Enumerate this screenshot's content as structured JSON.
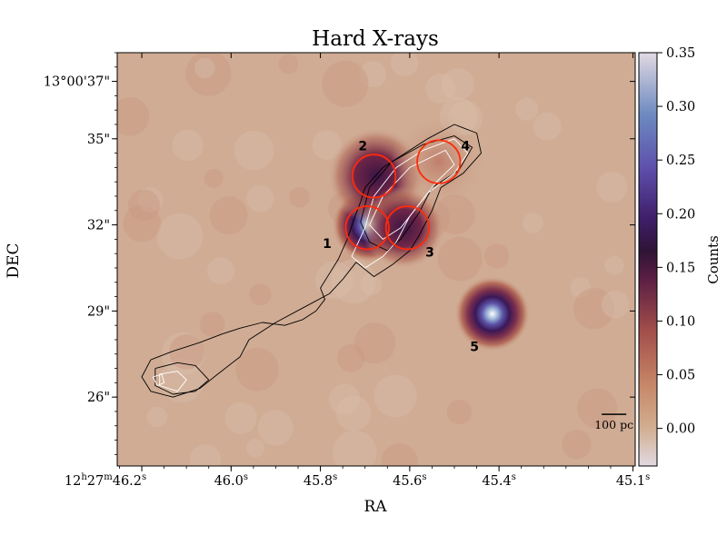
{
  "chart_data": {
    "type": "heatmap",
    "title": "Hard X-rays",
    "xlabel": "RA",
    "ylabel": "DEC",
    "colorbar": {
      "label": "Counts",
      "range": [
        -0.035,
        0.35
      ],
      "ticks": [
        "0.35",
        "0.30",
        "0.25",
        "0.20",
        "0.15",
        "0.10",
        "0.05",
        "0.00"
      ],
      "tick_values": [
        0.35,
        0.3,
        0.25,
        0.2,
        0.15,
        0.1,
        0.05,
        0.0
      ],
      "colormap": "twilight"
    },
    "ra_range_s": [
      46.255,
      45.095
    ],
    "dec_range_arcsec": [
      38.0,
      23.6
    ],
    "x_ticks": [
      {
        "value": 46.2,
        "h": "12",
        "m": "27",
        "main": "46.2",
        "sup_s": "s",
        "full": true
      },
      {
        "value": 46.0,
        "main": "46.0",
        "sup_s": "s"
      },
      {
        "value": 45.8,
        "main": "45.8",
        "sup_s": "s"
      },
      {
        "value": 45.6,
        "main": "45.6",
        "sup_s": "s"
      },
      {
        "value": 45.4,
        "main": "45.4",
        "sup_s": "s"
      },
      {
        "value": 45.1,
        "main": "45.1",
        "sup_s": "s"
      }
    ],
    "y_ticks": [
      {
        "value": 37,
        "label": "13°00'37\""
      },
      {
        "value": 35,
        "label": "35\""
      },
      {
        "value": 32,
        "label": "32\""
      },
      {
        "value": 29,
        "label": "29\""
      },
      {
        "value": 26,
        "label": "26\""
      }
    ],
    "sources": [
      {
        "id": "1",
        "ra": 45.69,
        "dec": 32.0,
        "peak": 0.33,
        "sigma": 0.55
      },
      {
        "id": "2",
        "ra": 45.675,
        "dec": 33.7,
        "peak": 0.12,
        "sigma": 0.7
      },
      {
        "id": "3",
        "ra": 45.615,
        "dec": 31.9,
        "peak": 0.14,
        "sigma": 0.6
      },
      {
        "id": "4",
        "ra": 45.535,
        "dec": 34.2,
        "peak": 0.03,
        "sigma": 0.7
      },
      {
        "id": "5",
        "ra": 45.415,
        "dec": 28.9,
        "peak": 0.34,
        "sigma": 0.55
      }
    ],
    "regions": [
      {
        "id": "1",
        "ra": 45.695,
        "dec": 31.9,
        "radius_arcsec": 0.75
      },
      {
        "id": "2",
        "ra": 45.68,
        "dec": 33.7,
        "radius_arcsec": 0.75
      },
      {
        "id": "3",
        "ra": 45.605,
        "dec": 31.9,
        "radius_arcsec": 0.75
      },
      {
        "id": "4",
        "ra": 45.535,
        "dec": 34.2,
        "radius_arcsec": 0.75
      }
    ],
    "source_labels": [
      {
        "id": "1",
        "ra": 45.785,
        "dec": 31.2
      },
      {
        "id": "2",
        "ra": 45.705,
        "dec": 34.6
      },
      {
        "id": "3",
        "ra": 45.555,
        "dec": 30.9
      },
      {
        "id": "4",
        "ra": 45.475,
        "dec": 34.6
      },
      {
        "id": "5",
        "ra": 45.455,
        "dec": 27.6
      }
    ],
    "scale_bar": {
      "label": "100 pc",
      "ra_start": 45.17,
      "ra_end": 45.115,
      "dec": 25.4
    },
    "contours": {
      "black_outer": [
        [
          46.18,
          27.3
        ],
        [
          46.13,
          27.6
        ],
        [
          46.07,
          27.9
        ],
        [
          46.02,
          28.2
        ],
        [
          45.98,
          28.4
        ],
        [
          45.93,
          28.6
        ],
        [
          45.88,
          28.5
        ],
        [
          45.84,
          28.7
        ],
        [
          45.81,
          29.0
        ],
        [
          45.79,
          29.4
        ],
        [
          45.8,
          29.8
        ],
        [
          45.78,
          30.3
        ],
        [
          45.76,
          30.8
        ],
        [
          45.74,
          31.5
        ],
        [
          45.72,
          32.4
        ],
        [
          45.71,
          32.8
        ],
        [
          45.7,
          33.3
        ],
        [
          45.66,
          34.0
        ],
        [
          45.61,
          34.5
        ],
        [
          45.56,
          35.0
        ],
        [
          45.5,
          35.5
        ],
        [
          45.45,
          35.2
        ],
        [
          45.44,
          34.5
        ],
        [
          45.48,
          33.8
        ],
        [
          45.53,
          33.3
        ],
        [
          45.55,
          32.5
        ],
        [
          45.58,
          31.6
        ],
        [
          45.6,
          31.1
        ],
        [
          45.64,
          30.6
        ],
        [
          45.68,
          30.2
        ],
        [
          45.72,
          30.7
        ],
        [
          45.75,
          30.1
        ],
        [
          45.78,
          29.6
        ],
        [
          45.84,
          29.1
        ],
        [
          45.9,
          28.6
        ],
        [
          45.96,
          28.0
        ],
        [
          45.98,
          27.4
        ],
        [
          46.03,
          26.8
        ],
        [
          46.07,
          26.3
        ],
        [
          46.13,
          26.0
        ],
        [
          46.18,
          26.2
        ],
        [
          46.2,
          26.7
        ],
        [
          46.18,
          27.3
        ]
      ],
      "black_mid": [
        [
          45.69,
          33.3
        ],
        [
          45.64,
          34.2
        ],
        [
          45.57,
          34.8
        ],
        [
          45.5,
          35.1
        ],
        [
          45.46,
          34.7
        ],
        [
          45.49,
          33.9
        ],
        [
          45.55,
          33.3
        ],
        [
          45.58,
          32.4
        ],
        [
          45.62,
          31.5
        ],
        [
          45.65,
          31.1
        ],
        [
          45.69,
          31.4
        ],
        [
          45.71,
          32.1
        ],
        [
          45.69,
          33.3
        ]
      ],
      "black_left": [
        [
          46.17,
          27.0
        ],
        [
          46.12,
          27.2
        ],
        [
          46.08,
          27.1
        ],
        [
          46.05,
          26.6
        ],
        [
          46.08,
          26.2
        ],
        [
          46.13,
          26.1
        ],
        [
          46.17,
          26.4
        ],
        [
          46.17,
          27.0
        ]
      ],
      "white_outer": [
        [
          45.73,
          30.9
        ],
        [
          45.7,
          31.9
        ],
        [
          45.68,
          33.0
        ],
        [
          45.63,
          34.0
        ],
        [
          45.57,
          34.6
        ],
        [
          45.5,
          35.0
        ],
        [
          45.47,
          34.5
        ],
        [
          45.5,
          33.8
        ],
        [
          45.56,
          33.1
        ],
        [
          45.6,
          32.3
        ],
        [
          45.63,
          31.4
        ],
        [
          45.66,
          30.9
        ],
        [
          45.7,
          30.5
        ],
        [
          45.73,
          30.9
        ]
      ],
      "white_inner": [
        [
          45.69,
          32.0
        ],
        [
          45.66,
          33.0
        ],
        [
          45.6,
          34.0
        ],
        [
          45.52,
          34.6
        ],
        [
          45.5,
          34.1
        ],
        [
          45.54,
          33.5
        ],
        [
          45.58,
          32.7
        ],
        [
          45.62,
          31.9
        ],
        [
          45.66,
          31.5
        ],
        [
          45.69,
          32.0
        ]
      ],
      "white_left": [
        [
          46.16,
          26.8
        ],
        [
          46.12,
          26.9
        ],
        [
          46.1,
          26.6
        ],
        [
          46.12,
          26.2
        ],
        [
          46.16,
          26.4
        ],
        [
          46.16,
          26.8
        ]
      ],
      "white_core": [
        [
          46.175,
          26.7
        ],
        [
          46.155,
          26.8
        ],
        [
          46.15,
          26.5
        ],
        [
          46.165,
          26.4
        ],
        [
          46.175,
          26.7
        ]
      ]
    }
  }
}
